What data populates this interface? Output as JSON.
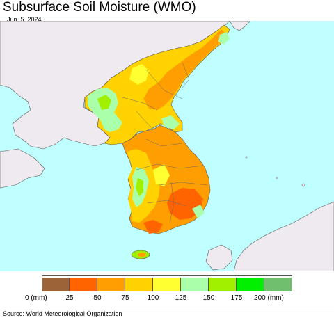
{
  "header": {
    "title": "Subsurface Soil Moisture (WMO)",
    "date": "Jun. 5, 2024"
  },
  "map": {
    "ocean_color": "#bfffff",
    "foreign_land_color": "#efeaef",
    "border_color": "#555555"
  },
  "legend": {
    "colors": [
      "#9c6436",
      "#ff6400",
      "#ff9e00",
      "#ffd200",
      "#ffff32",
      "#aaffaa",
      "#a0f000",
      "#00f000",
      "#6fbf6f"
    ],
    "ticks": [
      "0 (mm)",
      "25",
      "50",
      "75",
      "100",
      "125",
      "150",
      "175",
      "200 (mm)"
    ]
  },
  "footer": {
    "source": "Source: World Meteorological Organization"
  }
}
